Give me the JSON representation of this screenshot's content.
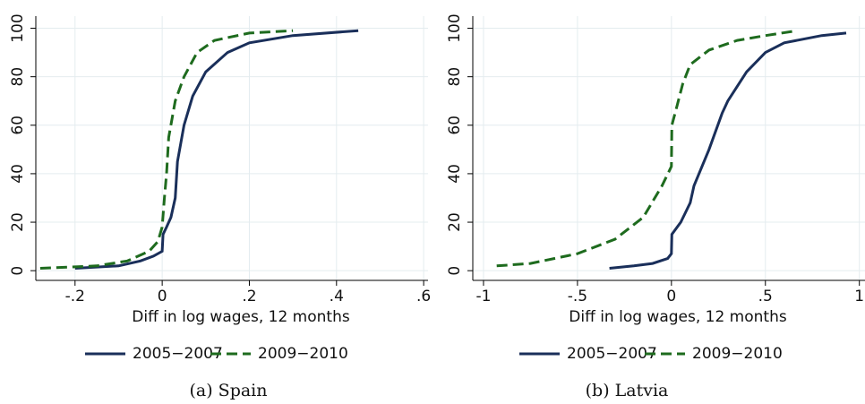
{
  "chart_data": [
    {
      "type": "line",
      "caption": "(a) Spain",
      "x_label": "Diff in log wages, 12 months",
      "xlim": [
        -0.29,
        0.61
      ],
      "ylim": [
        -4,
        105
      ],
      "xticks": [
        {
          "value": -0.2,
          "label": "-.2"
        },
        0,
        {
          "value": 0.2,
          "label": ".2"
        },
        {
          "value": 0.4,
          "label": ".4"
        },
        {
          "value": 0.6,
          "label": ".6"
        }
      ],
      "yticks": [
        0,
        20,
        40,
        60,
        80,
        100
      ],
      "grid": true,
      "series": [
        {
          "name": "2005−2007",
          "color": "#1a2f5a",
          "dash": false,
          "x": [
            -0.2,
            -0.1,
            -0.05,
            -0.02,
            0,
            0.002,
            0.01,
            0.02,
            0.03,
            0.035,
            0.05,
            0.07,
            0.1,
            0.15,
            0.2,
            0.3,
            0.45
          ],
          "values": [
            1,
            2,
            4,
            6,
            8,
            15,
            18,
            22,
            30,
            45,
            60,
            72,
            82,
            90,
            94,
            97,
            99
          ]
        },
        {
          "name": "2009−2010",
          "color": "#1e6b1e",
          "dash": true,
          "x": [
            -0.28,
            -0.15,
            -0.08,
            -0.03,
            -0.01,
            0,
            0.005,
            0.01,
            0.015,
            0.03,
            0.05,
            0.08,
            0.12,
            0.2,
            0.3
          ],
          "values": [
            1,
            2,
            4,
            8,
            12,
            18,
            30,
            40,
            55,
            70,
            80,
            90,
            95,
            98,
            99
          ]
        }
      ]
    },
    {
      "type": "line",
      "caption": "(b) Latvia",
      "x_label": "Diff in log wages, 12 months",
      "xlim": [
        -1.057,
        1.03
      ],
      "ylim": [
        -4,
        105
      ],
      "xticks": [
        -1,
        {
          "value": -0.5,
          "label": "-.5"
        },
        0,
        {
          "value": 0.5,
          "label": ".5"
        },
        1
      ],
      "yticks": [
        0,
        20,
        40,
        60,
        80,
        100
      ],
      "grid": true,
      "series": [
        {
          "name": "2005−2007",
          "color": "#1a2f5a",
          "dash": false,
          "x": [
            -0.33,
            -0.2,
            -0.1,
            -0.02,
            0,
            0.002,
            0.05,
            0.1,
            0.12,
            0.2,
            0.27,
            0.3,
            0.4,
            0.5,
            0.6,
            0.8,
            0.93
          ],
          "values": [
            1,
            2,
            3,
            5,
            7,
            15,
            20,
            28,
            35,
            50,
            65,
            70,
            82,
            90,
            94,
            97,
            98
          ]
        },
        {
          "name": "2009−2010",
          "color": "#1e6b1e",
          "dash": true,
          "x": [
            -0.93,
            -0.75,
            -0.5,
            -0.3,
            -0.15,
            -0.05,
            0,
            0.002,
            0.03,
            0.06,
            0.1,
            0.2,
            0.35,
            0.5,
            0.67
          ],
          "values": [
            2,
            3,
            7,
            13,
            22,
            35,
            43,
            60,
            68,
            77,
            85,
            91,
            95,
            97,
            99
          ]
        }
      ]
    }
  ]
}
